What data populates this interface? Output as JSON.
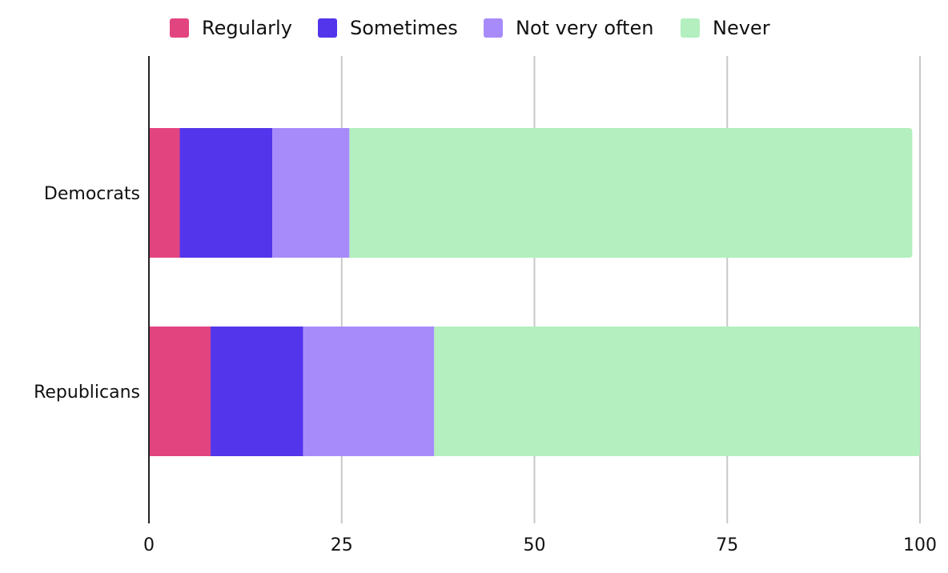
{
  "chart_data": {
    "type": "bar",
    "orientation": "horizontal",
    "stacked": true,
    "title": "",
    "xlabel": "",
    "ylabel": "",
    "categories": [
      "Democrats",
      "Republicans"
    ],
    "series": [
      {
        "name": "Regularly",
        "color": "#e24480",
        "values": [
          4,
          8
        ]
      },
      {
        "name": "Sometimes",
        "color": "#5335eb",
        "values": [
          12,
          12
        ]
      },
      {
        "name": "Not very often",
        "color": "#a78bfa",
        "values": [
          10,
          17
        ]
      },
      {
        "name": "Never",
        "color": "#b3efbf",
        "values": [
          73,
          63
        ]
      }
    ],
    "xlim": [
      0,
      100
    ],
    "xticks": [
      "0",
      "25",
      "50",
      "75",
      "100"
    ],
    "grid": true,
    "legend_position": "top-center"
  }
}
